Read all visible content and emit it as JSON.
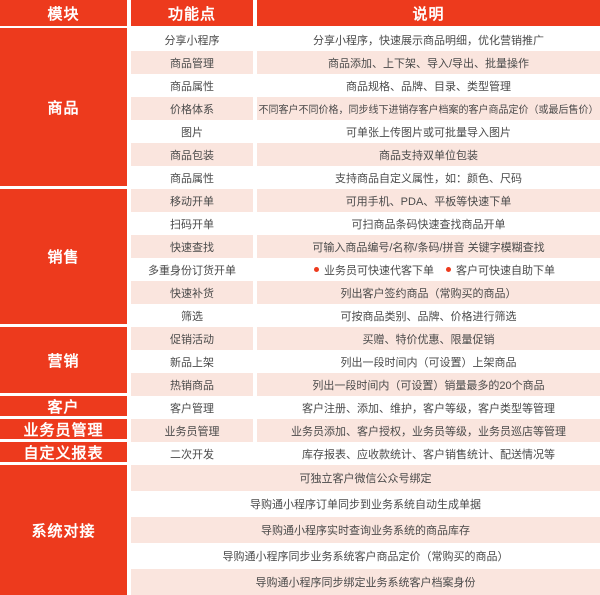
{
  "table": {
    "header": [
      "模块",
      "功能点",
      "说明"
    ],
    "colors": {
      "red": "#ED3A1D",
      "pink": "#FAE5DE",
      "text": "#4A4A4A"
    },
    "modules": [
      {
        "name": "商品",
        "rows": [
          {
            "feature": "分享小程序",
            "desc": "分享小程序，快速展示商品明细，优化营销推广"
          },
          {
            "feature": "商品管理",
            "desc": "商品添加、上下架、导入/导出、批量操作"
          },
          {
            "feature": "商品属性",
            "desc": "商品规格、品牌、目录、类型管理"
          },
          {
            "feature": "价格体系",
            "desc": "不同客户不同价格，同步线下进销存客户档案的客户商品定价（或最后售价）"
          },
          {
            "feature": "图片",
            "desc": "可单张上传图片或可批量导入图片"
          },
          {
            "feature": "商品包装",
            "desc": "商品支持双单位包装"
          },
          {
            "feature": "商品属性",
            "desc": "支持商品自定义属性，如：颜色、尺码"
          }
        ]
      },
      {
        "name": "销售",
        "rows": [
          {
            "feature": "移动开单",
            "desc": "可用手机、PDA、平板等快速下单"
          },
          {
            "feature": "扫码开单",
            "desc": "可扫商品条码快速查找商品开单"
          },
          {
            "feature": "快速查找",
            "desc": "可输入商品编号/名称/条码/拼音 关键字模糊查找"
          },
          {
            "feature": "多重身份订货开单",
            "bullets": [
              "业务员可快速代客下单",
              "客户可快速自助下单"
            ]
          },
          {
            "feature": "快速补货",
            "desc": "列出客户签约商品（常购买的商品）"
          },
          {
            "feature": "筛选",
            "desc": "可按商品类别、品牌、价格进行筛选"
          }
        ]
      },
      {
        "name": "营销",
        "rows": [
          {
            "feature": "促销活动",
            "desc": "买赠、特价优惠、限量促销"
          },
          {
            "feature": "新品上架",
            "desc": "列出一段时间内（可设置）上架商品"
          },
          {
            "feature": "热销商品",
            "desc": "列出一段时间内（可设置）销量最多的20个商品"
          }
        ]
      },
      {
        "name": "客户",
        "rows": [
          {
            "feature": "客户管理",
            "desc": "客户注册、添加、维护，客户等级，客户类型等管理"
          }
        ]
      },
      {
        "name": "业务员管理",
        "rows": [
          {
            "feature": "业务员管理",
            "desc": "业务员添加、客户授权，业务员等级，业务员巡店等管理"
          }
        ]
      },
      {
        "name": "自定义报表",
        "rows": [
          {
            "feature": "二次开发",
            "desc": "库存报表、应收款统计、客户销售统计、配送情况等"
          }
        ]
      },
      {
        "name": "系统对接",
        "merged": true,
        "rows": [
          {
            "desc": "可独立客户微信公众号绑定"
          },
          {
            "desc": "导购通小程序订单同步到业务系统自动生成单据"
          },
          {
            "desc": "导购通小程序实时查询业务系统的商品库存"
          },
          {
            "desc": "导购通小程序同步业务系统客户商品定价（常购买的商品）"
          },
          {
            "desc": "导购通小程序同步绑定业务系统客户档案身份"
          }
        ]
      }
    ]
  }
}
